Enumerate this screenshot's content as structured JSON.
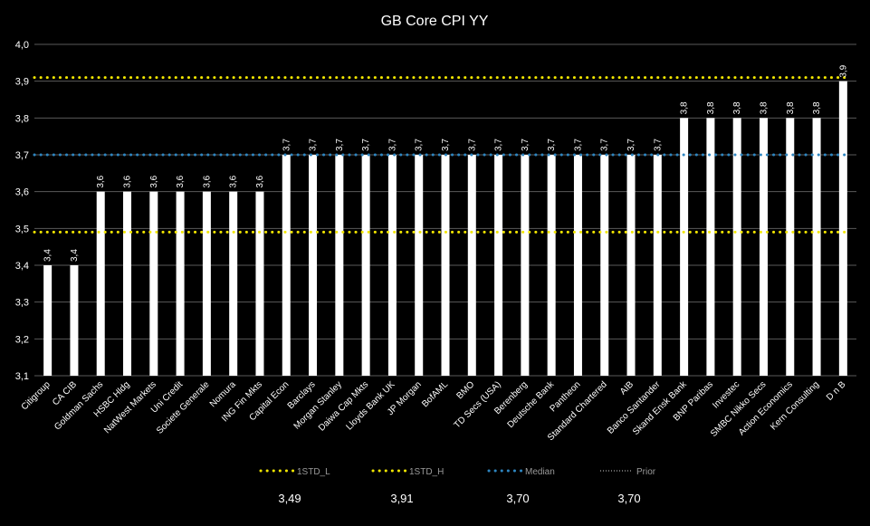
{
  "chart_data": {
    "type": "bar",
    "title": "GB Core CPI YY",
    "ylim": [
      3.1,
      4.0
    ],
    "yticks": [
      "3,1",
      "3,2",
      "3,3",
      "3,4",
      "3,5",
      "3,6",
      "3,7",
      "3,8",
      "3,9",
      "4,0"
    ],
    "grid": true,
    "categories": [
      "Citigroup",
      "CA CIB",
      "Goldman Sachs",
      "HSBC Hldg",
      "NatWest Markets",
      "Uni Credit",
      "Societe Generale",
      "Nomura",
      "ING Fin Mkts",
      "Capital Econ",
      "Barclays",
      "Morgan Stanley",
      "Daiwa Cap Mkts",
      "Lloyds Bank UK",
      "JP Morgan",
      "BofAML",
      "BMO",
      "TD Secs (USA)",
      "Berenberg",
      "Deutsche Bank",
      "Pantheon",
      "Standard Chartered",
      "AIB",
      "Banco Santander",
      "Skand Ensk Bank",
      "BNP Paribas",
      "Investec",
      "SMBC Nikko Secs",
      "Action Economics",
      "Kern Consulting",
      "D n B"
    ],
    "values": [
      3.4,
      3.4,
      3.6,
      3.6,
      3.6,
      3.6,
      3.6,
      3.6,
      3.6,
      3.7,
      3.7,
      3.7,
      3.7,
      3.7,
      3.7,
      3.7,
      3.7,
      3.7,
      3.7,
      3.7,
      3.7,
      3.7,
      3.7,
      3.7,
      3.8,
      3.8,
      3.8,
      3.8,
      3.8,
      3.8,
      3.9
    ],
    "value_labels": [
      "3,4",
      "3,4",
      "3,6",
      "3,6",
      "3,6",
      "3,6",
      "3,6",
      "3,6",
      "3,6",
      "3,7",
      "3,7",
      "3,7",
      "3,7",
      "3,7",
      "3,7",
      "3,7",
      "3,7",
      "3,7",
      "3,7",
      "3,7",
      "3,7",
      "3,7",
      "3,7",
      "3,7",
      "3,8",
      "3,8",
      "3,8",
      "3,8",
      "3,8",
      "3,8",
      "3,9"
    ],
    "bar_color": "#ffffff",
    "reference_lines": [
      {
        "name": "1STD_L",
        "value": 3.49,
        "display": "3,49",
        "color": "#f2e600",
        "style": "dotted"
      },
      {
        "name": "1STD_H",
        "value": 3.91,
        "display": "3,91",
        "color": "#f2e600",
        "style": "dotted"
      },
      {
        "name": "Median",
        "value": 3.7,
        "display": "3,70",
        "color": "#2e86c1",
        "style": "dotted"
      },
      {
        "name": "Prior",
        "value": 3.7,
        "display": "3,70",
        "color": "#cfcfcf",
        "style": "dotted-thin"
      }
    ],
    "legend_position": "bottom"
  }
}
